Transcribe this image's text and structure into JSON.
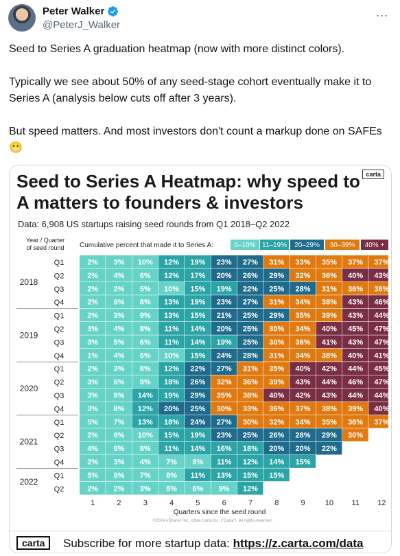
{
  "author": {
    "name": "Peter Walker",
    "handle": "@PeterJ_Walker",
    "more_icon": "..."
  },
  "tweet": {
    "paragraphs": [
      "Seed to Series A graduation heatmap (now with more distinct colors).",
      "Typically we see about 50% of any seed-stage cohort eventually make it to Series A (analysis below cuts off after 3 years).",
      "But speed matters. And most investors don't count a markup done on SAFEs 😬"
    ]
  },
  "heatmap": {
    "title": "Seed to Series A Heatmap: why speed to A matters to founders & investors",
    "carta_badge": "carta",
    "subtitle": "Data: 6,908 US startups raising seed rounds from Q1 2018–Q2 2022",
    "row_header": [
      "Year / Quarter",
      "of seed round"
    ],
    "legend_label": "Cumulative percent that made it to Series A:",
    "legend": [
      {
        "label": "0–10%",
        "color": "#66d3c8"
      },
      {
        "label": "11–19%",
        "color": "#2aa4a6"
      },
      {
        "label": "20–29%",
        "color": "#1e6b8c"
      },
      {
        "label": "30–39%",
        "color": "#e07a10"
      },
      {
        "label": "40% +",
        "color": "#7a2e44"
      }
    ],
    "x_axis_label": "Quarters since the seed round",
    "copyright": "©2024 eShares Inc., d/b/a Carta Inc. (\"Carta\"). All rights reserved.",
    "footer": {
      "logo": "carta",
      "text": "Subscribe for more startup data:",
      "link": "https://z.carta.com/data"
    }
  },
  "chart_data": {
    "type": "heatmap",
    "title": "Seed to Series A Heatmap: why speed to A matters to founders & investors",
    "xlabel": "Quarters since the seed round",
    "x": [
      1,
      2,
      3,
      4,
      5,
      6,
      7,
      8,
      9,
      10,
      11,
      12
    ],
    "rows": [
      {
        "year": "2018",
        "quarter": "Q1",
        "values": [
          2,
          3,
          10,
          12,
          19,
          23,
          27,
          31,
          33,
          35,
          37,
          37
        ]
      },
      {
        "year": "2018",
        "quarter": "Q2",
        "values": [
          2,
          4,
          6,
          12,
          17,
          20,
          26,
          29,
          32,
          36,
          40,
          43
        ]
      },
      {
        "year": "2018",
        "quarter": "Q3",
        "values": [
          2,
          2,
          5,
          10,
          15,
          19,
          22,
          25,
          28,
          31,
          36,
          38
        ]
      },
      {
        "year": "2018",
        "quarter": "Q4",
        "values": [
          2,
          6,
          8,
          13,
          19,
          23,
          27,
          31,
          34,
          38,
          43,
          46
        ]
      },
      {
        "year": "2019",
        "quarter": "Q1",
        "values": [
          2,
          3,
          9,
          13,
          15,
          21,
          25,
          29,
          35,
          39,
          43,
          44
        ]
      },
      {
        "year": "2019",
        "quarter": "Q2",
        "values": [
          3,
          4,
          8,
          11,
          14,
          20,
          25,
          30,
          34,
          40,
          45,
          47
        ]
      },
      {
        "year": "2019",
        "quarter": "Q3",
        "values": [
          3,
          5,
          6,
          11,
          14,
          19,
          25,
          30,
          36,
          41,
          43,
          47
        ]
      },
      {
        "year": "2019",
        "quarter": "Q4",
        "values": [
          1,
          4,
          6,
          10,
          15,
          24,
          28,
          31,
          34,
          38,
          40,
          41
        ]
      },
      {
        "year": "2020",
        "quarter": "Q1",
        "values": [
          2,
          3,
          8,
          12,
          22,
          27,
          31,
          35,
          40,
          42,
          44,
          45
        ]
      },
      {
        "year": "2020",
        "quarter": "Q2",
        "values": [
          3,
          6,
          9,
          18,
          26,
          32,
          36,
          39,
          43,
          44,
          46,
          47
        ]
      },
      {
        "year": "2020",
        "quarter": "Q3",
        "values": [
          3,
          8,
          14,
          19,
          29,
          35,
          38,
          40,
          42,
          43,
          44,
          44
        ]
      },
      {
        "year": "2020",
        "quarter": "Q4",
        "values": [
          3,
          8,
          12,
          20,
          25,
          30,
          33,
          36,
          37,
          38,
          39,
          40
        ]
      },
      {
        "year": "2021",
        "quarter": "Q1",
        "values": [
          5,
          7,
          13,
          18,
          24,
          27,
          30,
          32,
          34,
          35,
          36,
          37
        ]
      },
      {
        "year": "2021",
        "quarter": "Q2",
        "values": [
          2,
          6,
          10,
          15,
          19,
          23,
          25,
          26,
          28,
          29,
          30
        ]
      },
      {
        "year": "2021",
        "quarter": "Q3",
        "values": [
          4,
          6,
          8,
          11,
          14,
          16,
          18,
          20,
          20,
          22
        ]
      },
      {
        "year": "2021",
        "quarter": "Q4",
        "values": [
          2,
          3,
          4,
          7,
          8,
          11,
          12,
          14,
          15
        ]
      },
      {
        "year": "2022",
        "quarter": "Q1",
        "values": [
          5,
          6,
          7,
          8,
          11,
          13,
          15,
          15
        ]
      },
      {
        "year": "2022",
        "quarter": "Q2",
        "values": [
          2,
          2,
          3,
          5,
          6,
          9,
          12
        ]
      }
    ]
  }
}
